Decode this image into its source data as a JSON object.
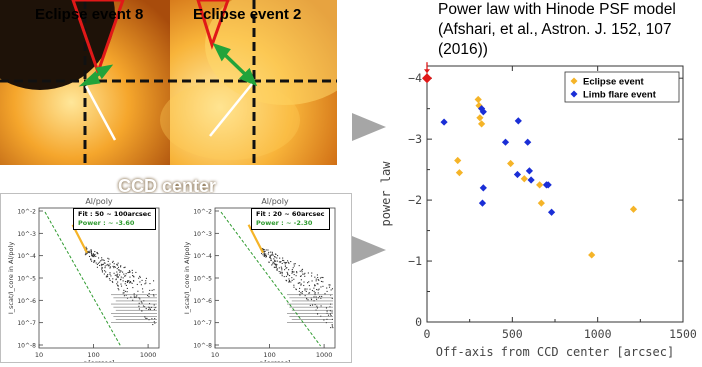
{
  "images": {
    "left_title": "Eclipse event 8",
    "right_title": "Eclipse event 2",
    "ccd_label": "CCD center"
  },
  "hinode_title": "Power law with Hinode PSF model (Afshari, et al., Astron. J. 152, 107 (2016))",
  "mini_plots": [
    {
      "title": "Al/poly",
      "fit_label": "Fit : 50 ~ 100arcsec",
      "power_label": "Power : ~ -3.60",
      "ylabel": "I_scat/I_core in Al/poly",
      "xlabel": "r [arcsec]",
      "xticks": [
        "10",
        "100",
        "1000"
      ],
      "yticks": [
        "10^-2",
        "10^-3",
        "10^-4",
        "10^-5",
        "10^-6",
        "10^-7",
        "10^-8"
      ]
    },
    {
      "title": "Al/poly",
      "fit_label": "Fit : 20 ~ 60arcsec",
      "power_label": "Power : ~ -2.30",
      "ylabel": "I_scat/I_core in Al/poly",
      "xlabel": "r [arcsec]",
      "xticks": [
        "10",
        "100",
        "1000"
      ],
      "yticks": [
        "10^-2",
        "10^-3",
        "10^-4",
        "10^-5",
        "10^-6",
        "10^-7",
        "10^-8"
      ]
    }
  ],
  "colors": {
    "eclipse": "#f5b428",
    "limb": "#1a2ed6",
    "hinode": "#e01818",
    "arrow_gray": "#a6a6a6",
    "fit_green": "#2e9a2e",
    "triangle_red": "#e01818",
    "ccd_arrow_green": "#22a33a"
  },
  "chart_data": {
    "type": "scatter",
    "xlabel": "Off-axis from CCD center [arcsec]",
    "ylabel": "power law",
    "xlim": [
      0,
      1500
    ],
    "ylim": [
      0,
      -4.2
    ],
    "y_inverted": true,
    "xticks": [
      "0",
      "500",
      "1000",
      "1500"
    ],
    "yticks": [
      "0",
      "−1",
      "−2",
      "−3",
      "−4"
    ],
    "legend_position": "top-right",
    "series": [
      {
        "name": "Eclipse event",
        "marker": "diamond",
        "points": [
          [
            300,
            -3.65
          ],
          [
            305,
            -3.55
          ],
          [
            310,
            -3.35
          ],
          [
            320,
            -3.25
          ],
          [
            180,
            -2.65
          ],
          [
            190,
            -2.45
          ],
          [
            490,
            -2.6
          ],
          [
            570,
            -2.35
          ],
          [
            660,
            -2.25
          ],
          [
            670,
            -1.95
          ],
          [
            1210,
            -1.85
          ],
          [
            965,
            -1.1
          ]
        ]
      },
      {
        "name": "Limb flare event",
        "marker": "diamond",
        "points": [
          [
            100,
            -3.28
          ],
          [
            320,
            -3.5
          ],
          [
            330,
            -3.45
          ],
          [
            460,
            -2.95
          ],
          [
            535,
            -3.3
          ],
          [
            590,
            -2.95
          ],
          [
            600,
            -2.48
          ],
          [
            530,
            -2.42
          ],
          [
            610,
            -2.33
          ],
          [
            700,
            -2.25
          ],
          [
            710,
            -2.25
          ],
          [
            730,
            -1.8
          ],
          [
            330,
            -2.2
          ],
          [
            325,
            -1.95
          ]
        ]
      },
      {
        "name": "",
        "marker": "diamond",
        "points": [
          [
            0,
            -4.0
          ]
        ]
      }
    ]
  }
}
